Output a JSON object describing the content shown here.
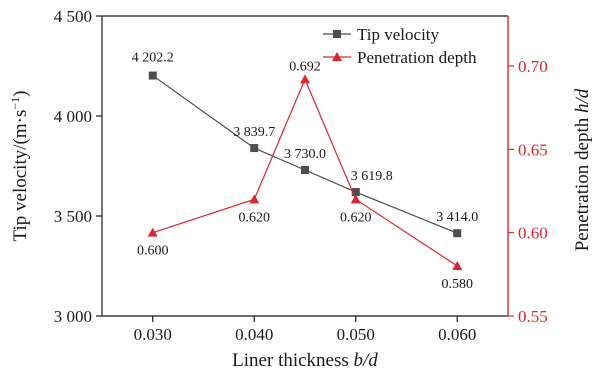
{
  "chart_data": {
    "type": "line",
    "xlabel": "Liner thickness ",
    "xlabel_var": "b/d",
    "ylabel_left": "Tip velocity/(m·s",
    "ylabel_left_exp": "−1",
    "ylabel_left_close": ")",
    "ylabel_right": "Penetration depth ",
    "ylabel_right_var": "h/d",
    "x_ticks": [
      "0.030",
      "0.040",
      "0.050",
      "0.060"
    ],
    "x_tick_values": [
      0.03,
      0.04,
      0.05,
      0.06
    ],
    "xlim": [
      0.025,
      0.065
    ],
    "ylim_left": [
      3000,
      4500
    ],
    "yticks_left": [
      3000,
      3500,
      4000,
      4500
    ],
    "ytick_labels_left": [
      "3 000",
      "3 500",
      "4 000",
      "4 500"
    ],
    "ylim_right": [
      0.55,
      0.73
    ],
    "yticks_right": [
      0.55,
      0.6,
      0.65,
      0.7
    ],
    "ytick_labels_right": [
      "0.55",
      "0.60",
      "0.65",
      "0.70"
    ],
    "legend_position": "top-right",
    "series": [
      {
        "name": "Tip velocity",
        "axis": "left",
        "color": "#4d4d4d",
        "marker": "square",
        "x": [
          0.03,
          0.04,
          0.045,
          0.05,
          0.06
        ],
        "values": [
          4202.2,
          3839.7,
          3730.0,
          3619.8,
          3414.0
        ],
        "labels": [
          "4 202.2",
          "3 839.7",
          "3 730.0",
          "3 619.8",
          "3 414.0"
        ]
      },
      {
        "name": "Penetration depth",
        "axis": "right",
        "color": "#e0262b",
        "marker": "triangle",
        "x": [
          0.03,
          0.04,
          0.045,
          0.05,
          0.06
        ],
        "values": [
          0.6,
          0.62,
          0.692,
          0.62,
          0.58
        ],
        "labels": [
          "0.600",
          "0.620",
          "0.692",
          "0.620",
          "0.580"
        ]
      }
    ]
  }
}
